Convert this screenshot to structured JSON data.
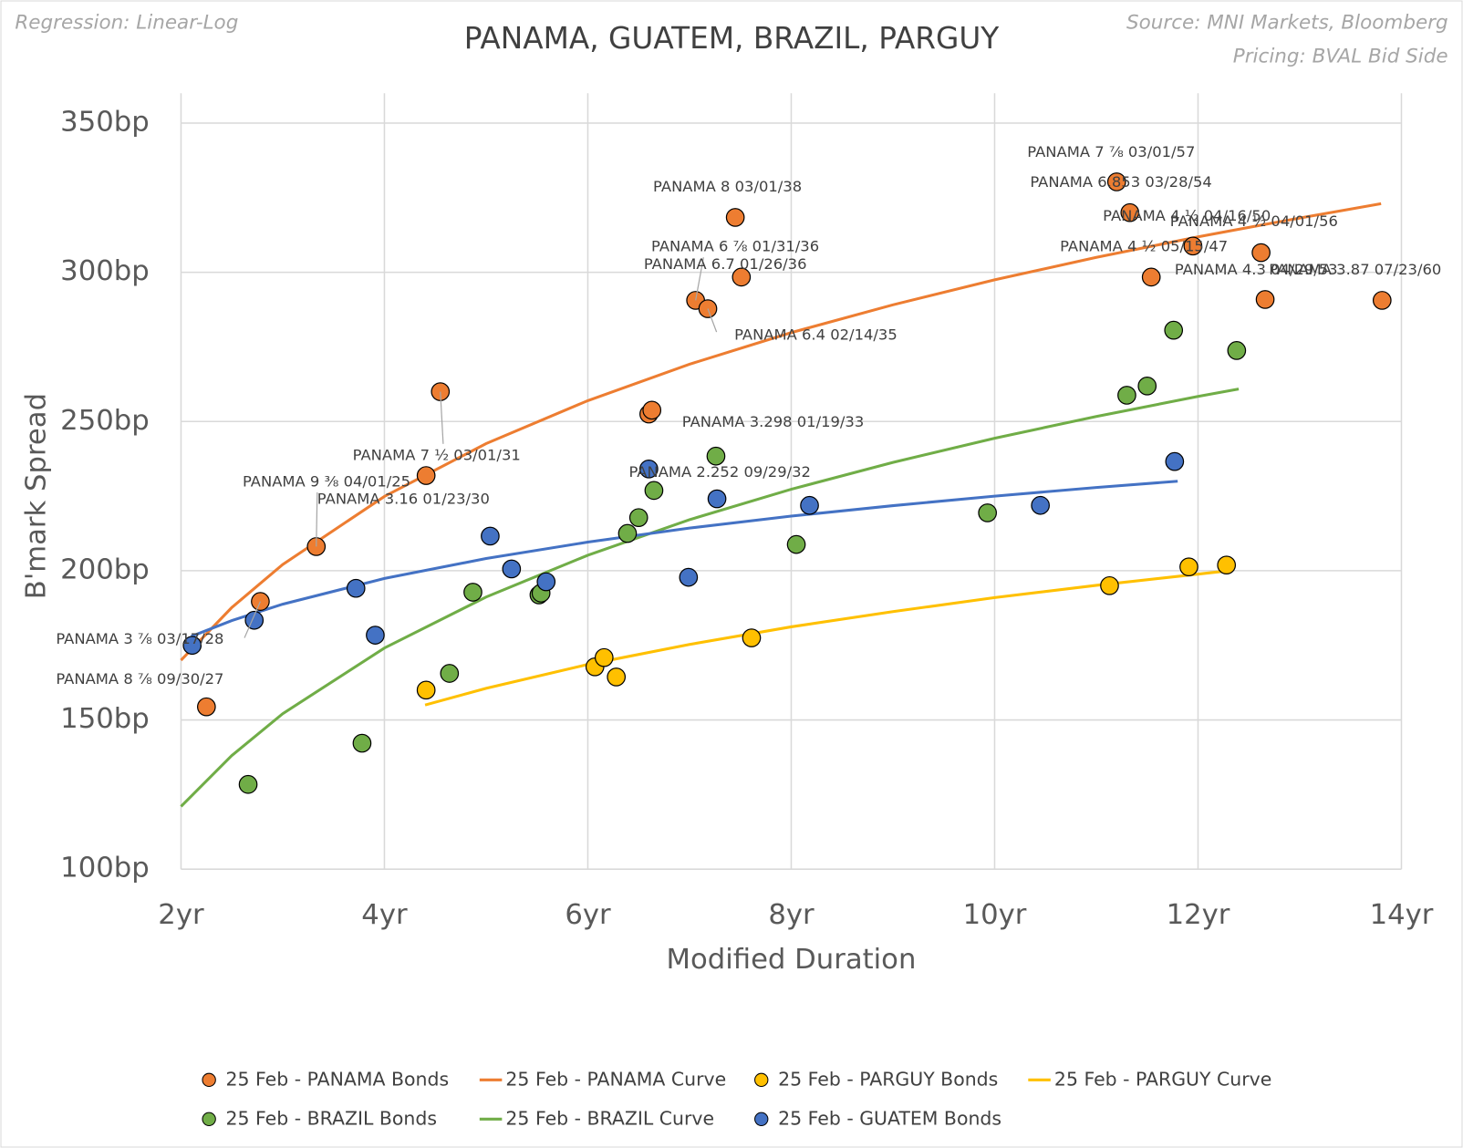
{
  "chart_data": {
    "type": "scatter",
    "title": "PANAMA, GUATEM, BRAZIL, PARGUY",
    "regression_note": "Regression: Linear-Log",
    "source": "Source: MNI Markets, Bloomberg",
    "pricing": "Pricing: BVAL Bid Side",
    "x_label": "Modified Duration",
    "y_label": "B'mark Spread",
    "xlim": [
      2,
      14
    ],
    "ylim": [
      100,
      350
    ],
    "xticks": [
      {
        "value": 2,
        "label": "2yr"
      },
      {
        "value": 4,
        "label": "4yr"
      },
      {
        "value": 6,
        "label": "6yr"
      },
      {
        "value": 8,
        "label": "8yr"
      },
      {
        "value": 10,
        "label": "10yr"
      },
      {
        "value": 12,
        "label": "12yr"
      },
      {
        "value": 14,
        "label": "14yr"
      }
    ],
    "yticks": [
      {
        "value": 100,
        "label": "100bp"
      },
      {
        "value": 150,
        "label": "150bp"
      },
      {
        "value": 200,
        "label": "200bp"
      },
      {
        "value": 250,
        "label": "250bp"
      },
      {
        "value": 300,
        "label": "300bp"
      },
      {
        "value": 350,
        "label": "350bp"
      }
    ],
    "grid": true,
    "legend": "bottom",
    "series": [
      {
        "name": "25 Feb - PANAMA Bonds",
        "kind": "scatter",
        "color": "#ed7d31",
        "x": [
          2.25,
          2.78,
          3.33,
          4.41,
          4.55,
          6.6,
          6.63,
          7.06,
          7.18,
          7.51,
          7.45,
          11.2,
          11.33,
          11.95,
          11.54,
          12.62,
          12.66,
          13.81
        ],
        "values": [
          154.4,
          189.7,
          208.1,
          231.9,
          260,
          252.5,
          253.8,
          290.6,
          287.8,
          298.4,
          318.4,
          330.3,
          320,
          308.8,
          298.4,
          306.6,
          290.9,
          290.6
        ],
        "point_labels": [
          "PANAMA 8 ⅞ 09/30/27",
          "PANAMA 3 ⅞ 03/17/28",
          "PANAMA 9 ⅜ 04/01/25",
          "PANAMA 3.16 01/23/30",
          "PANAMA 7 ½ 03/01/31",
          "PANAMA 2.252 09/29/32",
          "PANAMA 3.298 01/19/33",
          "PANAMA 6 ⅞ 01/31/36",
          "PANAMA 6.4 02/14/35",
          "PANAMA 6.7 01/26/36",
          "PANAMA 8 03/01/38",
          "PANAMA 7 ⅞ 03/01/57",
          "PANAMA 6.853 03/28/54",
          "PANAMA 4 ½ 04/16/50",
          "PANAMA 4 ½ 05/15/47",
          "PANAMA 4 ½ 04/01/56",
          "PANAMA 4.3 04/29/53",
          "PANAMA 3.87 07/23/60"
        ]
      },
      {
        "name": "25 Feb - PANAMA Curve",
        "kind": "line",
        "color": "#ed7d31",
        "x": [
          2,
          2.5,
          3,
          4,
          5,
          6,
          7,
          8,
          9,
          10,
          11,
          12,
          13,
          13.8
        ],
        "values": [
          170.0,
          187.7,
          202.1,
          224.9,
          242.6,
          257.0,
          269.2,
          279.8,
          289.1,
          297.5,
          305.0,
          311.9,
          318.2,
          323.0
        ]
      },
      {
        "name": "25 Feb - PARGUY Bonds",
        "kind": "scatter",
        "color": "#ffc000",
        "x": [
          4.41,
          6.07,
          6.16,
          6.28,
          7.61,
          11.13,
          11.91,
          12.28
        ],
        "values": [
          160,
          167.8,
          170.9,
          164.4,
          177.5,
          195,
          201.3,
          201.9
        ]
      },
      {
        "name": "25 Feb - PARGUY Curve",
        "kind": "line",
        "color": "#ffc000",
        "x": [
          4.4,
          5,
          6,
          7,
          8,
          9,
          10,
          11,
          12.3
        ],
        "values": [
          155.0,
          160.6,
          168.6,
          175.3,
          181.2,
          186.3,
          191.0,
          195.1,
          200.0
        ]
      },
      {
        "name": "25 Feb - BRAZIL Bonds",
        "kind": "scatter",
        "color": "#70ad47",
        "x": [
          2.66,
          3.78,
          4.64,
          4.87,
          5.52,
          5.54,
          6.39,
          6.5,
          6.65,
          7.26,
          8.05,
          9.93,
          11.3,
          11.5,
          11.76,
          12.38
        ],
        "values": [
          128.4,
          142.2,
          165.6,
          192.8,
          191.9,
          192.5,
          212.5,
          217.8,
          226.9,
          238.4,
          208.8,
          219.4,
          258.8,
          261.9,
          280.6,
          273.8
        ]
      },
      {
        "name": "25 Feb - BRAZIL Curve",
        "kind": "line",
        "color": "#70ad47",
        "x": [
          2,
          2.5,
          3,
          4,
          5,
          6,
          7,
          8,
          9,
          10,
          11,
          12,
          12.4
        ],
        "values": [
          121.0,
          138.1,
          152.1,
          174.1,
          191.2,
          205.2,
          217.1,
          227.3,
          236.3,
          244.4,
          251.7,
          258.4,
          260.9
        ]
      },
      {
        "name": "25 Feb - GUATEM Bonds",
        "kind": "scatter",
        "color": "#4472c4",
        "x": [
          2.11,
          2.72,
          3.72,
          3.91,
          5.04,
          5.25,
          5.59,
          6.6,
          6.99,
          7.27,
          8.18,
          10.45,
          11.77
        ],
        "values": [
          175,
          183.4,
          194.1,
          178.4,
          211.6,
          200.6,
          196.3,
          234.1,
          197.8,
          224.1,
          221.9,
          221.9,
          236.6
        ]
      },
      {
        "kind": "line",
        "color": "#4472c4",
        "x": [
          2.1,
          2.5,
          3,
          4,
          5,
          6,
          7,
          8,
          9,
          10,
          11,
          11.8
        ],
        "values": [
          178.0,
          183.3,
          188.8,
          197.4,
          204.1,
          209.6,
          214.3,
          218.3,
          221.8,
          225.0,
          227.9,
          230.0
        ]
      }
    ]
  }
}
